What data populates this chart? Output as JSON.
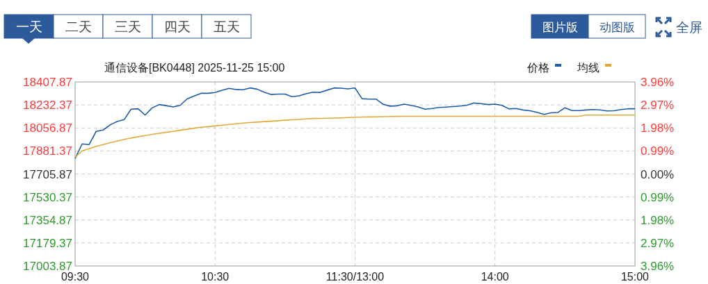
{
  "chart_data": {
    "type": "line",
    "title": "通信设备[BK0448] 2025-11-25 15:00",
    "annotations": [
      "一天",
      "二天",
      "三天",
      "四天",
      "五天",
      "图片版",
      "动图版",
      "全屏"
    ],
    "categories": [
      "09:30",
      null,
      null,
      null,
      null,
      null,
      null,
      null,
      null,
      null,
      null,
      null,
      null,
      null,
      null,
      null,
      null,
      null,
      null,
      null,
      "10:30",
      null,
      null,
      null,
      null,
      null,
      null,
      null,
      null,
      null,
      null,
      null,
      null,
      null,
      null,
      null,
      null,
      null,
      null,
      null,
      "11:30/13:00",
      null,
      null,
      null,
      null,
      null,
      null,
      null,
      null,
      null,
      null,
      null,
      null,
      null,
      null,
      null,
      null,
      null,
      null,
      null,
      "14:00",
      null,
      null,
      null,
      null,
      null,
      null,
      null,
      null,
      null,
      null,
      null,
      null,
      null,
      null,
      null,
      null,
      null,
      null,
      null,
      "15:00"
    ],
    "ylim": [
      17003.87,
      18407.87
    ],
    "yticks": [
      {
        "value": 17003.87,
        "label": "17003.87"
      },
      {
        "value": 17179.37,
        "label": "17179.37"
      },
      {
        "value": 17354.87,
        "label": "17354.87"
      },
      {
        "value": 17530.37,
        "label": "17530.37"
      },
      {
        "value": 17705.87,
        "label": "17705.87"
      },
      {
        "value": 17881.37,
        "label": "17881.37"
      },
      {
        "value": 18056.87,
        "label": "18056.87"
      },
      {
        "value": 18232.37,
        "label": "18232.37"
      },
      {
        "value": 18407.87,
        "label": "18407.87"
      }
    ],
    "y2lim": [
      -3.96,
      3.96
    ],
    "y2ticks": [
      {
        "value": -3.96,
        "label": "3.96%"
      },
      {
        "value": -2.97,
        "label": "2.97%"
      },
      {
        "value": -1.98,
        "label": "1.98%"
      },
      {
        "value": -0.99,
        "label": "0.99%"
      },
      {
        "value": 0,
        "label": "0.00%"
      },
      {
        "value": 0.99,
        "label": "0.99%"
      },
      {
        "value": 1.98,
        "label": "1.98%"
      },
      {
        "value": 2.97,
        "label": "2.97%"
      },
      {
        "value": 3.96,
        "label": "3.96%"
      }
    ],
    "grid": true,
    "legend": "top right",
    "series": [
      {
        "name": "价格",
        "color": "#1c5ba8",
        "values": [
          17823,
          17935,
          17930,
          18030,
          18041,
          18080,
          18106,
          18120,
          18200,
          18203,
          18155,
          18210,
          18235,
          18227,
          18217,
          18229,
          18278,
          18300,
          18321,
          18321,
          18327,
          18344,
          18359,
          18350,
          18348,
          18362,
          18353,
          18330,
          18312,
          18315,
          18315,
          18295,
          18302,
          18318,
          18330,
          18328,
          18345,
          18362,
          18360,
          18355,
          18362,
          18280,
          18277,
          18277,
          18238,
          18223,
          18226,
          18238,
          18229,
          18217,
          18200,
          18205,
          18213,
          18216,
          18220,
          18224,
          18230,
          18247,
          18242,
          18235,
          18238,
          18229,
          18202,
          18205,
          18194,
          18188,
          18176,
          18160,
          18172,
          18175,
          18211,
          18189,
          18189,
          18194,
          18197,
          18195,
          18187,
          18188,
          18197,
          18203,
          18203
        ]
      },
      {
        "name": "均线",
        "color": "#e0a93a",
        "values": [
          17832,
          17882,
          17898,
          17916,
          17930,
          17944,
          17956,
          17969,
          17980,
          17990,
          17999,
          18008,
          18016,
          18023,
          18030,
          18039,
          18047,
          18055,
          18062,
          18067,
          18072,
          18078,
          18083,
          18089,
          18094,
          18098,
          18101,
          18105,
          18108,
          18112,
          18116,
          18119,
          18122,
          18126,
          18129,
          18130,
          18131,
          18132,
          18134,
          18136,
          18138,
          18140,
          18141,
          18142,
          18143,
          18144,
          18145,
          18146,
          18146,
          18146,
          18146,
          18146,
          18146,
          18146,
          18146,
          18146,
          18146,
          18146,
          18146,
          18146,
          18146,
          18146,
          18146,
          18146,
          18146,
          18146,
          18146,
          18146,
          18146,
          18146,
          18146,
          18146,
          18146,
          18155,
          18155,
          18155,
          18155,
          18155,
          18155,
          18155,
          18155
        ]
      }
    ]
  }
}
